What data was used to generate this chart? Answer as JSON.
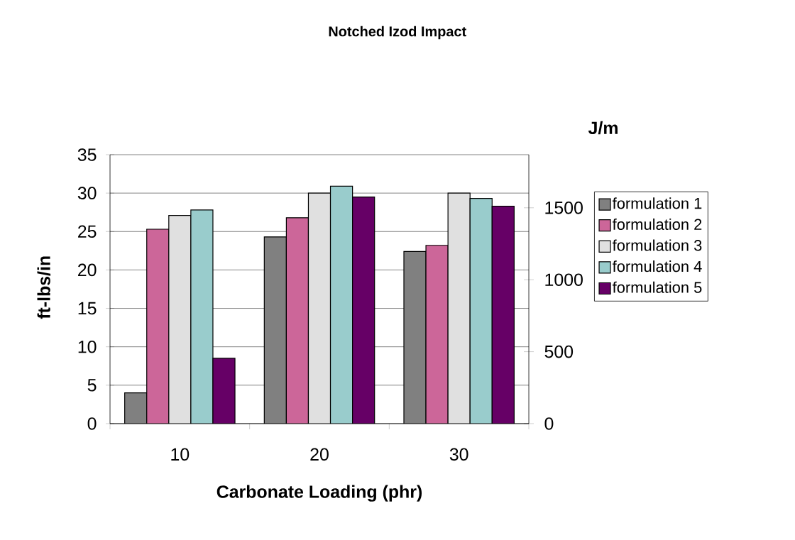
{
  "chart_data": {
    "type": "bar",
    "title": "Notched Izod Impact",
    "xlabel": "Carbonate Loading (phr)",
    "ylabel": "ft-lbs/in",
    "y2label": "J/m",
    "categories": [
      "10",
      "20",
      "30"
    ],
    "series": [
      {
        "name": "formulation 1",
        "color": "#808080",
        "values": [
          4.0,
          24.3,
          22.4
        ]
      },
      {
        "name": "formulation 2",
        "color": "#cc6699",
        "values": [
          25.3,
          26.8,
          23.2
        ]
      },
      {
        "name": "formulation 3",
        "color": "#e0e0e0",
        "values": [
          27.1,
          30.0,
          30.0
        ]
      },
      {
        "name": "formulation 4",
        "color": "#99cccc",
        "values": [
          27.8,
          30.9,
          29.3
        ]
      },
      {
        "name": "formulation 5",
        "color": "#660066",
        "values": [
          8.5,
          29.5,
          28.3
        ]
      }
    ],
    "ylim": [
      0,
      35
    ],
    "yticks": [
      0,
      5,
      10,
      15,
      20,
      25,
      30,
      35
    ],
    "y2lim": [
      0,
      1869
    ],
    "y2ticks": [
      0,
      500,
      1000,
      1500
    ],
    "grid": "y",
    "legend": "right"
  }
}
